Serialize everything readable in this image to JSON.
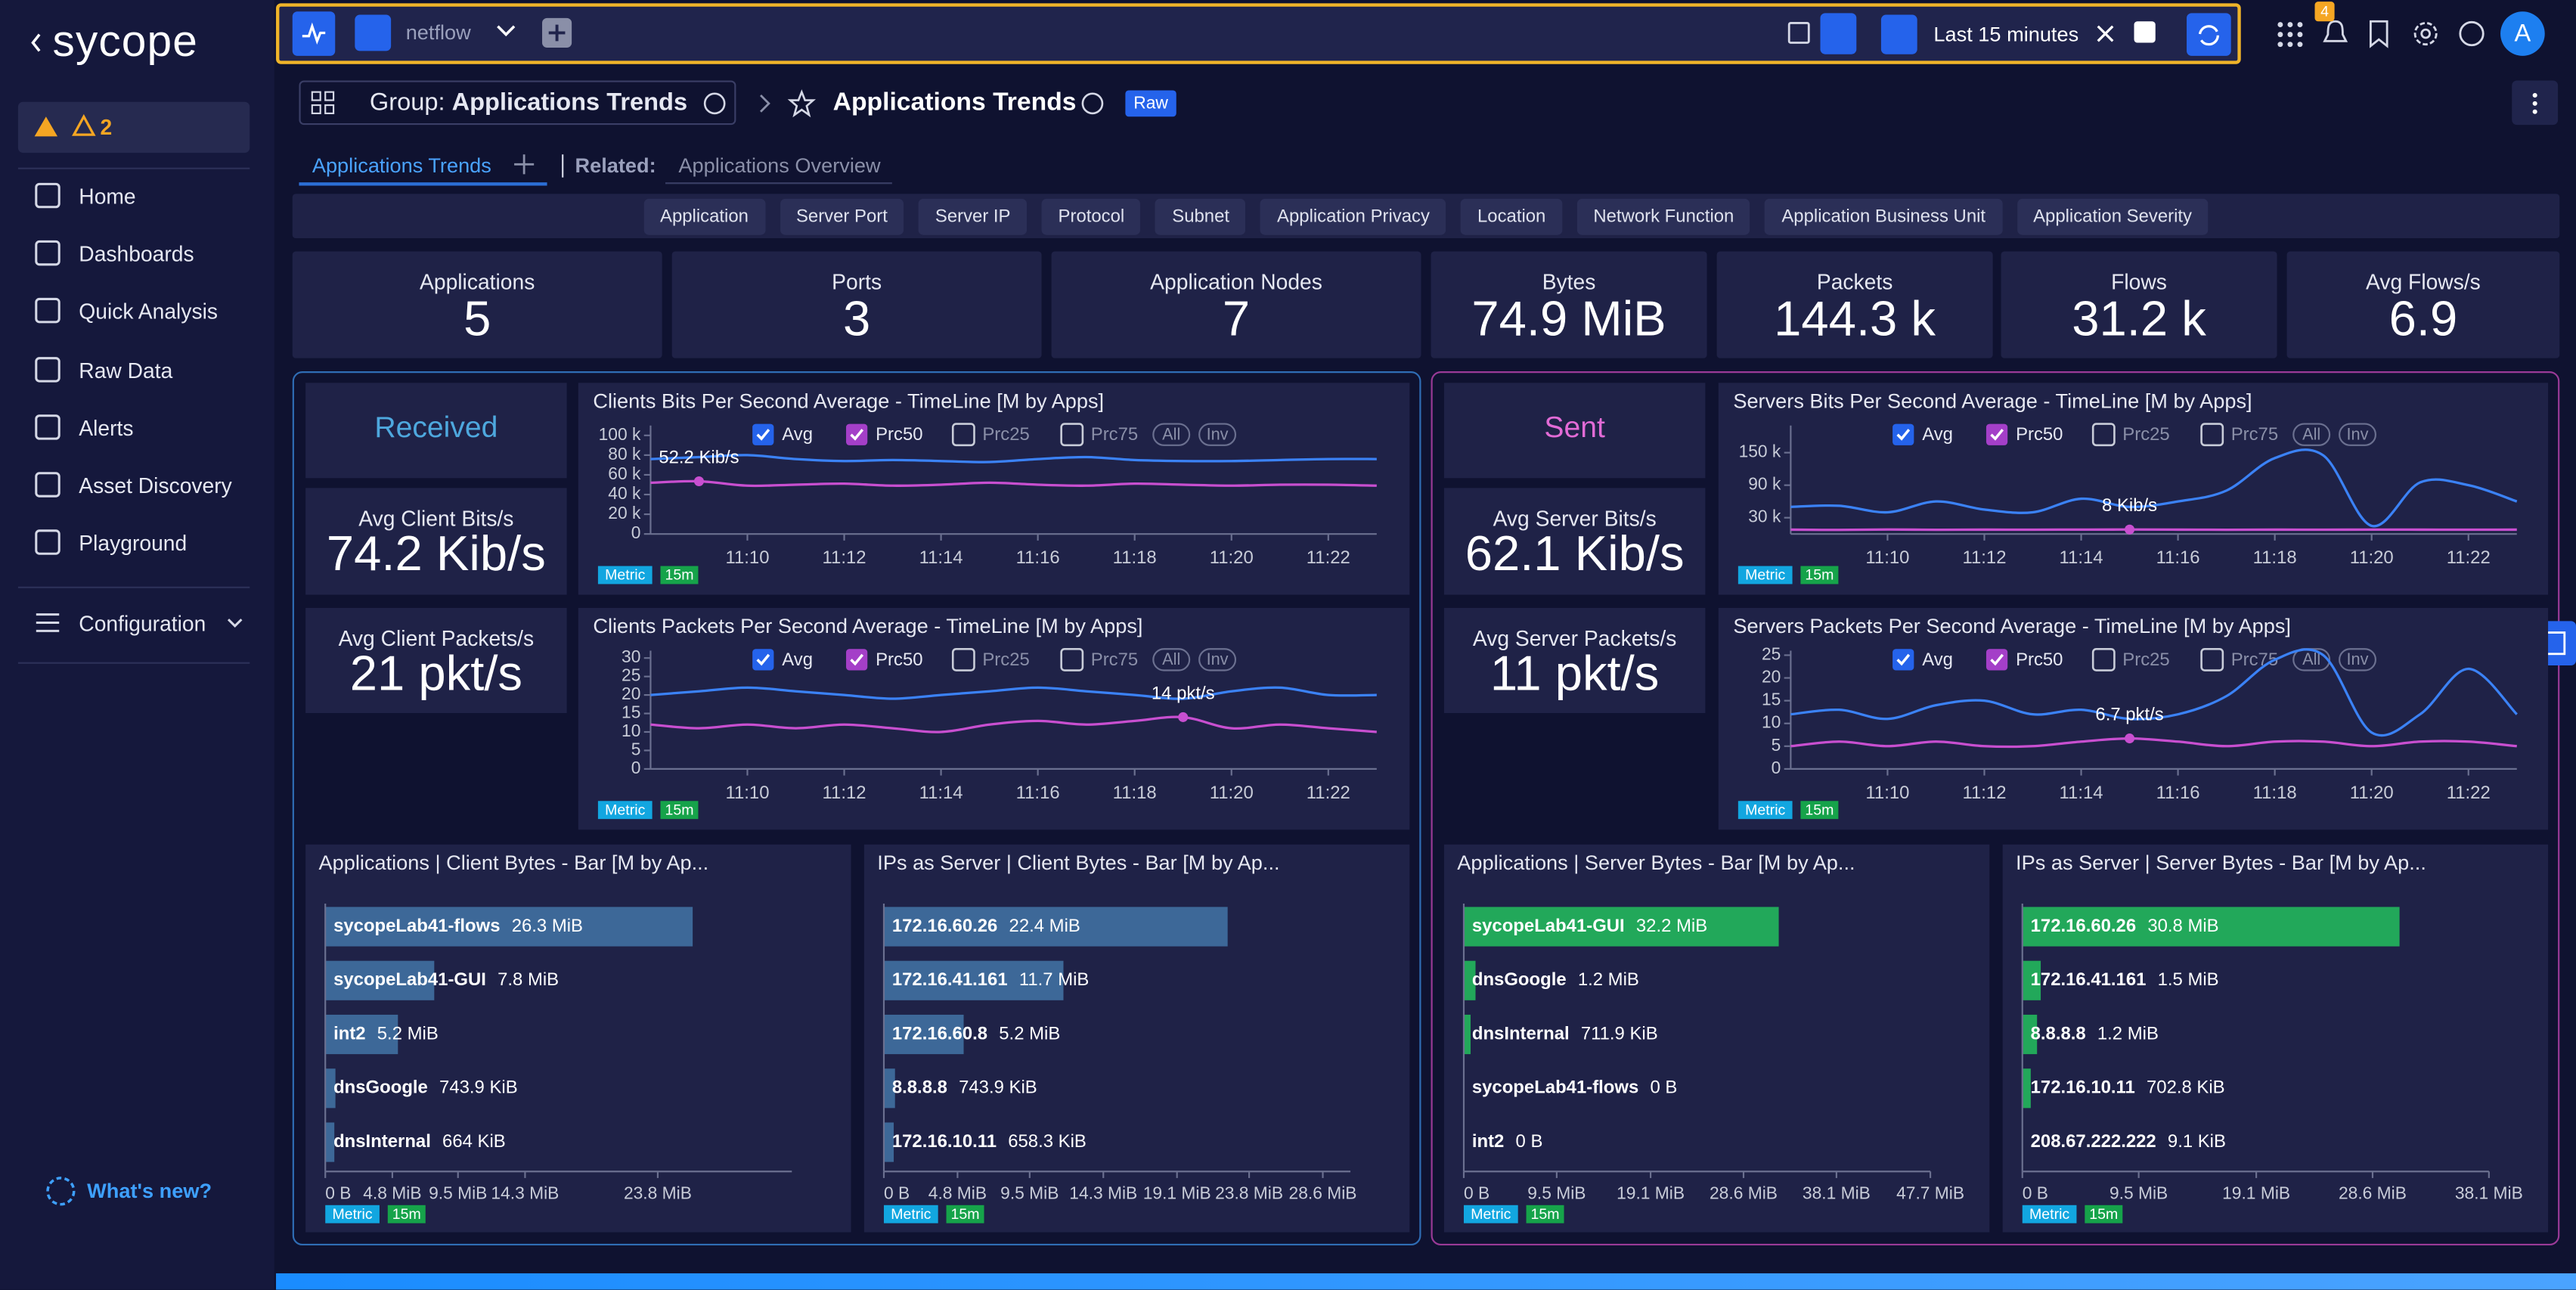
{
  "sidebar": {
    "brand": "sycope",
    "alerts": "2",
    "nav": [
      "Home",
      "Dashboards",
      "Quick Analysis",
      "Raw Data",
      "Alerts",
      "Asset Discovery",
      "Playground"
    ],
    "config": "Configuration",
    "whats_new": "What's new?"
  },
  "topbar": {
    "source": "netflow",
    "time_range": "Last 15 minutes",
    "notifications": "4",
    "avatar": "A"
  },
  "header": {
    "group_label": "Group:",
    "group_name": "Applications Trends",
    "title": "Applications Trends",
    "badge": "Raw"
  },
  "tabs": {
    "active": "Applications Trends",
    "related_label": "Related:",
    "related": "Applications Overview"
  },
  "filters": [
    "Application",
    "Server Port",
    "Server IP",
    "Protocol",
    "Subnet",
    "Application Privacy",
    "Location",
    "Network Function",
    "Application Business Unit",
    "Application Severity"
  ],
  "kpis": [
    {
      "label": "Applications",
      "value": "5"
    },
    {
      "label": "Ports",
      "value": "3"
    },
    {
      "label": "Application Nodes",
      "value": "7"
    },
    {
      "label": "Bytes",
      "value": "74.9 MiB"
    },
    {
      "label": "Packets",
      "value": "144.3 k"
    },
    {
      "label": "Flows",
      "value": "31.2 k"
    },
    {
      "label": "Avg Flows/s",
      "value": "6.9"
    }
  ],
  "sections": [
    {
      "heading": "Received",
      "stats": [
        {
          "label": "Avg Client Bits/s",
          "value": "74.2 Kib/s"
        },
        {
          "label": "Avg Client Packets/s",
          "value": "21 pkt/s"
        }
      ]
    },
    {
      "heading": "Sent",
      "stats": [
        {
          "label": "Avg Server Bits/s",
          "value": "62.1 Kib/s"
        },
        {
          "label": "Avg Server Packets/s",
          "value": "11 pkt/s"
        }
      ]
    }
  ],
  "line_charts": [
    {
      "type": "line",
      "title": "Clients Bits Per Second Average - TimeLine [M by Apps]",
      "toggles": [
        "All",
        "Inv"
      ],
      "tags": [
        "Metric",
        "15m"
      ],
      "x": [
        "11:08",
        "11:09",
        "11:10",
        "11:11",
        "11:12",
        "11:13",
        "11:14",
        "11:15",
        "11:16",
        "11:17",
        "11:18",
        "11:19",
        "11:20",
        "11:21",
        "11:22",
        "11:23"
      ],
      "xlim": [
        "11:08",
        "11:23"
      ],
      "xticks": [
        "11:10",
        "11:12",
        "11:14",
        "11:16",
        "11:18",
        "11:20",
        "11:22"
      ],
      "ylim": [
        0,
        110000
      ],
      "yticks": [
        0,
        {
          "value": 20000,
          "label": "20 k"
        },
        {
          "value": 40000,
          "label": "40 k"
        },
        {
          "value": 60000,
          "label": "60 k"
        },
        {
          "value": 80000,
          "label": "80 k"
        },
        {
          "value": 100000,
          "label": "100 k"
        }
      ],
      "series": [
        {
          "name": "Avg",
          "color": "#3b82f6",
          "checked": true,
          "values": [
            76000,
            78000,
            80000,
            76000,
            74000,
            75000,
            74000,
            73000,
            76000,
            78000,
            75000,
            74000,
            74000,
            75000,
            76000,
            76000
          ]
        },
        {
          "name": "Prc50",
          "color": "#c84fd0",
          "checked": true,
          "values": [
            52000,
            53453,
            49000,
            50000,
            51000,
            49000,
            50000,
            52000,
            50000,
            49000,
            51000,
            50000,
            49000,
            50000,
            50000,
            49000
          ]
        },
        {
          "name": "Prc25",
          "color": "#9ca3af",
          "checked": false
        },
        {
          "name": "Prc75",
          "color": "#9ca3af",
          "checked": false
        }
      ],
      "annotation": {
        "label": "52.2 Kib/s",
        "x": "11:09",
        "value": 53453
      }
    },
    {
      "type": "line",
      "title": "Clients Packets Per Second Average - TimeLine [M by Apps]",
      "toggles": [
        "All",
        "Inv"
      ],
      "tags": [
        "Metric",
        "15m"
      ],
      "x": [
        "11:08",
        "11:09",
        "11:10",
        "11:11",
        "11:12",
        "11:13",
        "11:14",
        "11:15",
        "11:16",
        "11:17",
        "11:18",
        "11:19",
        "11:20",
        "11:21",
        "11:22",
        "11:23"
      ],
      "xlim": [
        "11:08",
        "11:23"
      ],
      "xticks": [
        "11:10",
        "11:12",
        "11:14",
        "11:16",
        "11:18",
        "11:20",
        "11:22"
      ],
      "ylim": [
        0,
        32
      ],
      "yticks": [
        0,
        5,
        10,
        15,
        20,
        25,
        30
      ],
      "series": [
        {
          "name": "Avg",
          "color": "#3b82f6",
          "checked": true,
          "values": [
            20,
            21,
            22,
            21,
            20,
            19,
            20,
            21,
            22,
            21,
            20,
            19,
            21,
            22,
            20,
            20
          ]
        },
        {
          "name": "Prc50",
          "color": "#c84fd0",
          "checked": true,
          "values": [
            12,
            11,
            12,
            11,
            12,
            11,
            10,
            12,
            13,
            12,
            13,
            14,
            11,
            12,
            11,
            10
          ]
        },
        {
          "name": "Prc25",
          "color": "#9ca3af",
          "checked": false
        },
        {
          "name": "Prc75",
          "color": "#9ca3af",
          "checked": false
        }
      ],
      "annotation": {
        "label": "14 pkt/s",
        "x": "11:19",
        "value": 14
      }
    },
    {
      "type": "line",
      "title": "Servers Bits Per Second Average - TimeLine [M by Apps]",
      "toggles": [
        "All",
        "Inv"
      ],
      "tags": [
        "Metric",
        "15m"
      ],
      "x": [
        "11:08",
        "11:09",
        "11:10",
        "11:11",
        "11:12",
        "11:13",
        "11:14",
        "11:15",
        "11:16",
        "11:17",
        "11:18",
        "11:19",
        "11:20",
        "11:21",
        "11:22",
        "11:23"
      ],
      "xlim": [
        "11:08",
        "11:23"
      ],
      "xticks": [
        "11:10",
        "11:12",
        "11:14",
        "11:16",
        "11:18",
        "11:20",
        "11:22"
      ],
      "ylim": [
        0,
        200000
      ],
      "yticks": [
        {
          "value": 30000,
          "label": "30 k"
        },
        {
          "value": 90000,
          "label": "90 k"
        },
        {
          "value": 150000,
          "label": "150 k"
        }
      ],
      "series": [
        {
          "name": "Avg",
          "color": "#3b82f6",
          "checked": true,
          "values": [
            50000,
            52000,
            40000,
            60000,
            45000,
            40000,
            65000,
            50000,
            60000,
            80000,
            140000,
            145000,
            15000,
            95000,
            90000,
            60000
          ]
        },
        {
          "name": "Prc50",
          "color": "#c84fd0",
          "checked": true,
          "values": [
            8000,
            7500,
            8200,
            7800,
            8000,
            7900,
            8100,
            8192,
            8000,
            7800,
            8000,
            7900,
            8100,
            8000,
            7900,
            8000
          ]
        },
        {
          "name": "Prc25",
          "color": "#9ca3af",
          "checked": false
        },
        {
          "name": "Prc75",
          "color": "#9ca3af",
          "checked": false
        }
      ],
      "annotation": {
        "label": "8 Kib/s",
        "x": "11:15",
        "value": 8192
      }
    },
    {
      "type": "line",
      "title": "Servers Packets Per Second Average - TimeLine [M by Apps]",
      "toggles": [
        "All",
        "Inv"
      ],
      "tags": [
        "Metric",
        "15m"
      ],
      "x": [
        "11:08",
        "11:09",
        "11:10",
        "11:11",
        "11:12",
        "11:13",
        "11:14",
        "11:15",
        "11:16",
        "11:17",
        "11:18",
        "11:19",
        "11:20",
        "11:21",
        "11:22",
        "11:23"
      ],
      "xlim": [
        "11:08",
        "11:23"
      ],
      "xticks": [
        "11:10",
        "11:12",
        "11:14",
        "11:16",
        "11:18",
        "11:20",
        "11:22"
      ],
      "ylim": [
        0,
        26
      ],
      "yticks": [
        0,
        5,
        10,
        15,
        20,
        25
      ],
      "series": [
        {
          "name": "Avg",
          "color": "#3b82f6",
          "checked": true,
          "values": [
            12,
            13,
            11,
            14,
            15,
            12,
            13,
            11,
            12,
            16,
            24,
            25,
            8,
            12,
            22,
            12
          ]
        },
        {
          "name": "Prc50",
          "color": "#c84fd0",
          "checked": true,
          "values": [
            5,
            6,
            5,
            6,
            5,
            5,
            6,
            6.7,
            6,
            5,
            6,
            6,
            5,
            6,
            6,
            5
          ]
        },
        {
          "name": "Prc25",
          "color": "#9ca3af",
          "checked": false
        },
        {
          "name": "Prc75",
          "color": "#9ca3af",
          "checked": false
        }
      ],
      "annotation": {
        "label": "6.7 pkt/s",
        "x": "11:15",
        "value": 6.7
      }
    }
  ],
  "bar_charts": [
    {
      "type": "bar",
      "title": "Applications | Client Bytes - Bar [M by Ap...",
      "color": "#3d6898",
      "tags": [
        "Metric",
        "15m"
      ],
      "categories": [
        "sycopeLab41-flows",
        "sycopeLab41-GUI",
        "int2",
        "dnsGoogle",
        "dnsInternal"
      ],
      "values": [
        26.3,
        7.8,
        5.2,
        0.7265,
        0.6484
      ],
      "value_labels": [
        "26.3 MiB",
        "7.8 MiB",
        "5.2 MiB",
        "743.9 KiB",
        "664 KiB"
      ],
      "xlim": [
        0,
        33.4
      ],
      "xticks": [
        {
          "value": 0,
          "label": "0 B"
        },
        {
          "value": 4.8,
          "label": "4.8 MiB"
        },
        {
          "value": 9.5,
          "label": "9.5 MiB"
        },
        {
          "value": 14.3,
          "label": "14.3 MiB"
        },
        {
          "value": 23.8,
          "label": "23.8 MiB"
        }
      ]
    },
    {
      "type": "bar",
      "title": "IPs as Server | Client Bytes - Bar [M by Ap...",
      "color": "#3d6898",
      "tags": [
        "Metric",
        "15m"
      ],
      "categories": [
        "172.16.60.26",
        "172.16.41.161",
        "172.16.60.8",
        "8.8.8.8",
        "172.16.10.11"
      ],
      "values": [
        22.4,
        11.7,
        5.2,
        0.7265,
        0.6429
      ],
      "value_labels": [
        "22.4 MiB",
        "11.7 MiB",
        "5.2 MiB",
        "743.9 KiB",
        "658.3 KiB"
      ],
      "xlim": [
        0,
        30.4
      ],
      "xticks": [
        {
          "value": 0,
          "label": "0 B"
        },
        {
          "value": 4.8,
          "label": "4.8 MiB"
        },
        {
          "value": 9.5,
          "label": "9.5 MiB"
        },
        {
          "value": 14.3,
          "label": "14.3 MiB"
        },
        {
          "value": 19.1,
          "label": "19.1 MiB"
        },
        {
          "value": 23.8,
          "label": "23.8 MiB"
        },
        {
          "value": 28.6,
          "label": "28.6 MiB"
        }
      ]
    },
    {
      "type": "bar",
      "title": "Applications | Server Bytes - Bar [M by Ap...",
      "color": "#22a85a",
      "tags": [
        "Metric",
        "15m"
      ],
      "categories": [
        "sycopeLab41-GUI",
        "dnsGoogle",
        "dnsInternal",
        "sycopeLab41-flows",
        "int2"
      ],
      "values": [
        32.2,
        1.2,
        0.6952,
        0,
        0
      ],
      "value_labels": [
        "32.2 MiB",
        "1.2 MiB",
        "711.9 KiB",
        "0 B",
        "0 B"
      ],
      "xlim": [
        0,
        47.7
      ],
      "xticks": [
        {
          "value": 0,
          "label": "0 B"
        },
        {
          "value": 9.5,
          "label": "9.5 MiB"
        },
        {
          "value": 19.1,
          "label": "19.1 MiB"
        },
        {
          "value": 28.6,
          "label": "28.6 MiB"
        },
        {
          "value": 38.1,
          "label": "38.1 MiB"
        },
        {
          "value": 47.7,
          "label": "47.7 MiB"
        }
      ]
    },
    {
      "type": "bar",
      "title": "IPs as Server | Server Bytes - Bar [M by Ap...",
      "color": "#22a85a",
      "tags": [
        "Metric",
        "15m"
      ],
      "categories": [
        "172.16.60.26",
        "172.16.41.161",
        "8.8.8.8",
        "172.16.10.11",
        "208.67.222.222"
      ],
      "values": [
        30.8,
        1.5,
        1.2,
        0.6863,
        0.0089
      ],
      "value_labels": [
        "30.8 MiB",
        "1.5 MiB",
        "1.2 MiB",
        "702.8 KiB",
        "9.1 KiB"
      ],
      "xlim": [
        0,
        38.1
      ],
      "xticks": [
        {
          "value": 0,
          "label": "0 B"
        },
        {
          "value": 9.5,
          "label": "9.5 MiB"
        },
        {
          "value": 19.1,
          "label": "19.1 MiB"
        },
        {
          "value": 28.6,
          "label": "28.6 MiB"
        },
        {
          "value": 38.1,
          "label": "38.1 MiB"
        }
      ]
    }
  ]
}
